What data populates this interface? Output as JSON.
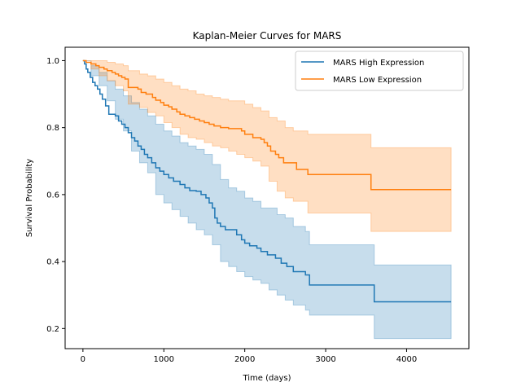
{
  "chart_data": {
    "type": "line",
    "subtype": "kaplan-meier step curves with confidence bands",
    "title": "Kaplan-Meier Curves for MARS",
    "xlabel": "Time (days)",
    "ylabel": "Survival Probability",
    "xlim": [
      -220,
      4770
    ],
    "ylim": [
      0.14,
      1.04
    ],
    "xticks": [
      0,
      1000,
      2000,
      3000,
      4000
    ],
    "yticks": [
      0.2,
      0.4,
      0.6,
      0.8,
      1.0
    ],
    "xtick_labels": [
      "0",
      "1000",
      "2000",
      "3000",
      "4000"
    ],
    "ytick_labels": [
      "0.2",
      "0.4",
      "0.6",
      "0.8",
      "1.0"
    ],
    "grid": false,
    "legend_position": "top-right",
    "series": [
      {
        "name": "MARS High Expression",
        "color": "#1f77b4",
        "band_color": "#1f77b4",
        "points": [
          [
            0,
            1.0
          ],
          [
            20,
            0.99
          ],
          [
            40,
            0.975
          ],
          [
            60,
            0.965
          ],
          [
            90,
            0.95
          ],
          [
            120,
            0.935
          ],
          [
            150,
            0.925
          ],
          [
            180,
            0.915
          ],
          [
            210,
            0.9
          ],
          [
            240,
            0.885
          ],
          [
            280,
            0.865
          ],
          [
            320,
            0.84
          ],
          [
            400,
            0.835
          ],
          [
            440,
            0.82
          ],
          [
            480,
            0.81
          ],
          [
            520,
            0.8
          ],
          [
            560,
            0.785
          ],
          [
            600,
            0.77
          ],
          [
            640,
            0.76
          ],
          [
            680,
            0.745
          ],
          [
            720,
            0.735
          ],
          [
            760,
            0.72
          ],
          [
            800,
            0.71
          ],
          [
            850,
            0.695
          ],
          [
            900,
            0.68
          ],
          [
            950,
            0.67
          ],
          [
            1000,
            0.66
          ],
          [
            1060,
            0.65
          ],
          [
            1120,
            0.64
          ],
          [
            1200,
            0.63
          ],
          [
            1260,
            0.62
          ],
          [
            1320,
            0.612
          ],
          [
            1400,
            0.61
          ],
          [
            1460,
            0.6
          ],
          [
            1520,
            0.59
          ],
          [
            1560,
            0.575
          ],
          [
            1600,
            0.56
          ],
          [
            1630,
            0.53
          ],
          [
            1660,
            0.515
          ],
          [
            1700,
            0.505
          ],
          [
            1760,
            0.495
          ],
          [
            1900,
            0.48
          ],
          [
            1960,
            0.465
          ],
          [
            2000,
            0.455
          ],
          [
            2060,
            0.447
          ],
          [
            2150,
            0.44
          ],
          [
            2200,
            0.43
          ],
          [
            2280,
            0.42
          ],
          [
            2380,
            0.41
          ],
          [
            2450,
            0.395
          ],
          [
            2520,
            0.385
          ],
          [
            2600,
            0.37
          ],
          [
            2750,
            0.36
          ],
          [
            2800,
            0.33
          ],
          [
            3600,
            0.28
          ],
          [
            4550,
            0.28
          ]
        ],
        "ci_upper": [
          [
            0,
            1.0
          ],
          [
            100,
            0.985
          ],
          [
            200,
            0.965
          ],
          [
            300,
            0.94
          ],
          [
            400,
            0.915
          ],
          [
            500,
            0.895
          ],
          [
            600,
            0.875
          ],
          [
            700,
            0.855
          ],
          [
            800,
            0.835
          ],
          [
            900,
            0.81
          ],
          [
            1000,
            0.79
          ],
          [
            1100,
            0.775
          ],
          [
            1200,
            0.755
          ],
          [
            1300,
            0.745
          ],
          [
            1400,
            0.735
          ],
          [
            1500,
            0.72
          ],
          [
            1600,
            0.69
          ],
          [
            1700,
            0.645
          ],
          [
            1800,
            0.62
          ],
          [
            1900,
            0.61
          ],
          [
            2000,
            0.59
          ],
          [
            2100,
            0.58
          ],
          [
            2200,
            0.56
          ],
          [
            2400,
            0.54
          ],
          [
            2500,
            0.53
          ],
          [
            2600,
            0.505
          ],
          [
            2750,
            0.49
          ],
          [
            2800,
            0.45
          ],
          [
            3600,
            0.39
          ],
          [
            4550,
            0.39
          ]
        ],
        "ci_lower": [
          [
            0,
            1.0
          ],
          [
            100,
            0.955
          ],
          [
            200,
            0.925
          ],
          [
            300,
            0.88
          ],
          [
            400,
            0.825
          ],
          [
            500,
            0.79
          ],
          [
            600,
            0.73
          ],
          [
            700,
            0.695
          ],
          [
            800,
            0.665
          ],
          [
            900,
            0.6
          ],
          [
            1000,
            0.575
          ],
          [
            1100,
            0.555
          ],
          [
            1200,
            0.535
          ],
          [
            1300,
            0.515
          ],
          [
            1400,
            0.495
          ],
          [
            1500,
            0.48
          ],
          [
            1600,
            0.45
          ],
          [
            1700,
            0.4
          ],
          [
            1800,
            0.385
          ],
          [
            1900,
            0.37
          ],
          [
            2000,
            0.355
          ],
          [
            2100,
            0.345
          ],
          [
            2200,
            0.335
          ],
          [
            2300,
            0.315
          ],
          [
            2400,
            0.3
          ],
          [
            2500,
            0.285
          ],
          [
            2600,
            0.27
          ],
          [
            2750,
            0.255
          ],
          [
            2800,
            0.24
          ],
          [
            3600,
            0.17
          ],
          [
            4550,
            0.17
          ]
        ]
      },
      {
        "name": "MARS Low Expression",
        "color": "#ff7f0e",
        "band_color": "#ff7f0e",
        "points": [
          [
            0,
            1.0
          ],
          [
            40,
            0.995
          ],
          [
            100,
            0.99
          ],
          [
            160,
            0.985
          ],
          [
            200,
            0.98
          ],
          [
            260,
            0.975
          ],
          [
            300,
            0.97
          ],
          [
            360,
            0.965
          ],
          [
            400,
            0.96
          ],
          [
            440,
            0.955
          ],
          [
            480,
            0.95
          ],
          [
            520,
            0.945
          ],
          [
            560,
            0.92
          ],
          [
            680,
            0.915
          ],
          [
            720,
            0.905
          ],
          [
            780,
            0.9
          ],
          [
            860,
            0.89
          ],
          [
            900,
            0.882
          ],
          [
            960,
            0.875
          ],
          [
            1000,
            0.867
          ],
          [
            1060,
            0.862
          ],
          [
            1100,
            0.855
          ],
          [
            1160,
            0.847
          ],
          [
            1200,
            0.84
          ],
          [
            1260,
            0.835
          ],
          [
            1320,
            0.83
          ],
          [
            1380,
            0.825
          ],
          [
            1440,
            0.82
          ],
          [
            1500,
            0.815
          ],
          [
            1560,
            0.81
          ],
          [
            1620,
            0.805
          ],
          [
            1700,
            0.8
          ],
          [
            1800,
            0.797
          ],
          [
            1960,
            0.79
          ],
          [
            2000,
            0.78
          ],
          [
            2100,
            0.77
          ],
          [
            2200,
            0.765
          ],
          [
            2240,
            0.755
          ],
          [
            2280,
            0.745
          ],
          [
            2320,
            0.73
          ],
          [
            2380,
            0.72
          ],
          [
            2420,
            0.71
          ],
          [
            2480,
            0.695
          ],
          [
            2560,
            0.695
          ],
          [
            2640,
            0.675
          ],
          [
            2780,
            0.66
          ],
          [
            3560,
            0.615
          ],
          [
            4550,
            0.615
          ]
        ],
        "ci_upper": [
          [
            0,
            1.0
          ],
          [
            200,
            1.0
          ],
          [
            300,
            0.995
          ],
          [
            400,
            0.99
          ],
          [
            500,
            0.985
          ],
          [
            560,
            0.97
          ],
          [
            700,
            0.96
          ],
          [
            800,
            0.955
          ],
          [
            900,
            0.945
          ],
          [
            1000,
            0.935
          ],
          [
            1100,
            0.925
          ],
          [
            1200,
            0.915
          ],
          [
            1300,
            0.91
          ],
          [
            1400,
            0.9
          ],
          [
            1500,
            0.895
          ],
          [
            1600,
            0.89
          ],
          [
            1700,
            0.885
          ],
          [
            1800,
            0.88
          ],
          [
            2000,
            0.87
          ],
          [
            2100,
            0.86
          ],
          [
            2200,
            0.85
          ],
          [
            2300,
            0.83
          ],
          [
            2400,
            0.82
          ],
          [
            2500,
            0.8
          ],
          [
            2600,
            0.79
          ],
          [
            2780,
            0.78
          ],
          [
            3560,
            0.74
          ],
          [
            4550,
            0.72
          ]
        ],
        "ci_lower": [
          [
            0,
            1.0
          ],
          [
            100,
            0.975
          ],
          [
            200,
            0.955
          ],
          [
            300,
            0.94
          ],
          [
            400,
            0.925
          ],
          [
            500,
            0.91
          ],
          [
            560,
            0.87
          ],
          [
            700,
            0.86
          ],
          [
            800,
            0.845
          ],
          [
            900,
            0.835
          ],
          [
            1000,
            0.815
          ],
          [
            1100,
            0.8
          ],
          [
            1200,
            0.78
          ],
          [
            1300,
            0.77
          ],
          [
            1400,
            0.765
          ],
          [
            1500,
            0.755
          ],
          [
            1600,
            0.745
          ],
          [
            1700,
            0.74
          ],
          [
            1800,
            0.73
          ],
          [
            1900,
            0.72
          ],
          [
            2000,
            0.71
          ],
          [
            2100,
            0.7
          ],
          [
            2200,
            0.685
          ],
          [
            2300,
            0.64
          ],
          [
            2400,
            0.61
          ],
          [
            2500,
            0.59
          ],
          [
            2600,
            0.58
          ],
          [
            2780,
            0.545
          ],
          [
            3560,
            0.49
          ],
          [
            4550,
            0.49
          ]
        ]
      }
    ]
  }
}
